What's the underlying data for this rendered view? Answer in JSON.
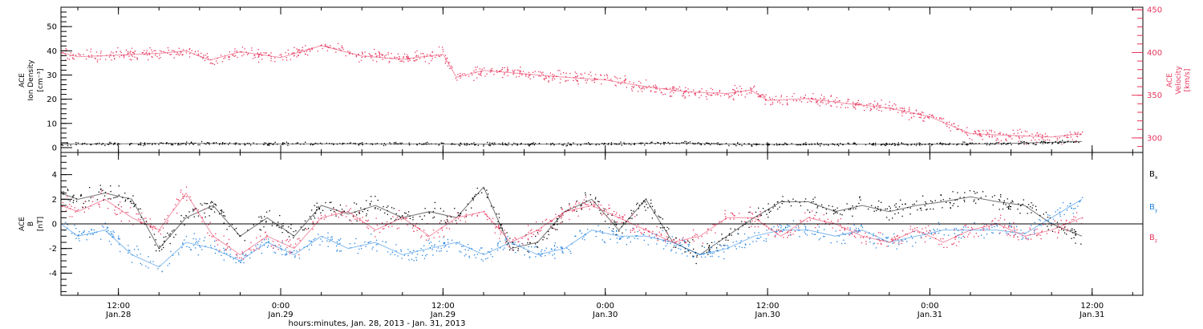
{
  "colors": {
    "density": "#000000",
    "velocity": "#e8365d",
    "bx": "#000000",
    "by": "#1f82e0",
    "bz": "#e8365d",
    "axis": "#000000"
  },
  "xaxis": {
    "ticks": [
      {
        "t": 9,
        "time": "12:00",
        "date": "Jan.28"
      },
      {
        "t": 21,
        "time": "0:00",
        "date": "Jan.29"
      },
      {
        "t": 33,
        "time": "12:00",
        "date": "Jan.29"
      },
      {
        "t": 45,
        "time": "0:00",
        "date": "Jan.30"
      },
      {
        "t": 57,
        "time": "12:00",
        "date": "Jan.30"
      },
      {
        "t": 69,
        "time": "0:00",
        "date": "Jan.31"
      },
      {
        "t": 81,
        "time": "12:00",
        "date": "Jan.31"
      }
    ],
    "label": "hours:minutes, Jan. 28, 2013 - Jan. 31, 2013"
  },
  "top_panel": {
    "left_label": [
      "ACE",
      "Ion Density",
      "[cm⁻³]"
    ],
    "right_label": [
      "ACE",
      "Velocity",
      "[km/s]"
    ],
    "left_ticks": [
      "0",
      "10",
      "20",
      "30",
      "40",
      "50"
    ],
    "right_ticks": [
      "300",
      "350",
      "400",
      "450"
    ]
  },
  "bottom_panel": {
    "left_label": [
      "ACE",
      "B",
      "[nT]"
    ],
    "left_ticks": [
      "-4",
      "-2",
      "0",
      "2",
      "4"
    ],
    "legend": [
      {
        "key": "bx",
        "text": "B",
        "sub": "x"
      },
      {
        "key": "by",
        "text": "B",
        "sub": "y"
      },
      {
        "key": "bz",
        "text": "B",
        "sub": "z"
      }
    ]
  },
  "chart_data": [
    {
      "type": "scatter",
      "title": "",
      "xlabel": "hours:minutes, Jan. 28, 2013 - Jan. 31, 2013",
      "xlim": [
        "2013-01-28T04:45",
        "2013-01-31T12:45"
      ],
      "ylabel_left": "ACE Ion Density [cm⁻³]",
      "ylim_left": [
        -2,
        58
      ],
      "ylabel_right": "ACE Velocity [km/s]",
      "ylim_right": [
        283,
        453
      ],
      "grid": false,
      "series": [
        {
          "key": "density",
          "axis": "left",
          "x": [
            "2013-01-28T04:45",
            "2013-01-28T08:00",
            "2013-01-28T14:00",
            "2013-01-28T20:00",
            "2013-01-29T02:00",
            "2013-01-29T08:00",
            "2013-01-29T14:00",
            "2013-01-29T20:00",
            "2013-01-30T02:00",
            "2013-01-30T08:00",
            "2013-01-30T14:00",
            "2013-01-30T20:00",
            "2013-01-31T02:00",
            "2013-01-31T08:15"
          ],
          "values": [
            1.5,
            1.5,
            1.8,
            1.5,
            1.6,
            1.5,
            1.4,
            1.5,
            1.8,
            1.3,
            1.4,
            1.4,
            1.6,
            2.5
          ]
        },
        {
          "key": "velocity",
          "axis": "right",
          "x": [
            "2013-01-28T04:45",
            "2013-01-28T06:00",
            "2013-01-28T09:00",
            "2013-01-28T12:00",
            "2013-01-28T14:00",
            "2013-01-28T15:45",
            "2013-01-28T18:00",
            "2013-01-28T21:00",
            "2013-01-29T00:00",
            "2013-01-29T03:00",
            "2013-01-29T06:00",
            "2013-01-29T09:00",
            "2013-01-29T10:00",
            "2013-01-29T12:00",
            "2013-01-29T15:00",
            "2013-01-29T18:00",
            "2013-01-29T21:00",
            "2013-01-30T00:00",
            "2013-01-30T03:00",
            "2013-01-30T06:00",
            "2013-01-30T07:45",
            "2013-01-30T09:00",
            "2013-01-30T12:00",
            "2013-01-30T15:00",
            "2013-01-30T18:00",
            "2013-01-30T21:00",
            "2013-01-31T00:00",
            "2013-01-31T03:00",
            "2013-01-31T06:00",
            "2013-01-31T08:15"
          ],
          "values": [
            400,
            395,
            397,
            399,
            402,
            391,
            401,
            394,
            408,
            396,
            392,
            398,
            371,
            379,
            375,
            371,
            368,
            360,
            354,
            352,
            356,
            344,
            346,
            340,
            335,
            325,
            305,
            303,
            301,
            305
          ]
        }
      ]
    },
    {
      "type": "scatter",
      "title": "",
      "xlabel": "hours:minutes, Jan. 28, 2013 - Jan. 31, 2013",
      "xlim": [
        "2013-01-28T04:45",
        "2013-01-31T12:45"
      ],
      "ylabel": "ACE B [nT]",
      "ylim": [
        -5.8,
        5.8
      ],
      "grid": false,
      "series": [
        {
          "key": "bx",
          "name": "Bx",
          "x": [
            "2013-01-28T04:45",
            "2013-01-28T06:00",
            "2013-01-28T08:00",
            "2013-01-28T10:00",
            "2013-01-28T12:00",
            "2013-01-28T14:00",
            "2013-01-28T16:00",
            "2013-01-28T18:00",
            "2013-01-28T20:00",
            "2013-01-28T22:00",
            "2013-01-29T00:00",
            "2013-01-29T02:00",
            "2013-01-29T04:00",
            "2013-01-29T06:00",
            "2013-01-29T08:00",
            "2013-01-29T10:00",
            "2013-01-29T12:00",
            "2013-01-29T14:00",
            "2013-01-29T16:00",
            "2013-01-29T18:00",
            "2013-01-29T20:00",
            "2013-01-29T22:00",
            "2013-01-30T00:00",
            "2013-01-30T02:00",
            "2013-01-30T04:00",
            "2013-01-30T06:00",
            "2013-01-30T08:00",
            "2013-01-30T10:00",
            "2013-01-30T12:00",
            "2013-01-30T14:00",
            "2013-01-30T16:00",
            "2013-01-30T18:00",
            "2013-01-30T20:00",
            "2013-01-30T22:00",
            "2013-01-31T00:00",
            "2013-01-31T02:00",
            "2013-01-31T04:00",
            "2013-01-31T06:00",
            "2013-01-31T08:15"
          ],
          "values": [
            2.5,
            2.0,
            2.5,
            2.0,
            -2.0,
            0.5,
            1.5,
            -1.0,
            0.5,
            -1.0,
            1.5,
            0.8,
            1.5,
            0.5,
            1.0,
            0.5,
            3.0,
            -2.0,
            -1.5,
            1.0,
            2.0,
            -0.5,
            2.0,
            -1.5,
            -2.5,
            -1.0,
            0.5,
            1.8,
            1.8,
            1.0,
            1.5,
            1.0,
            1.5,
            1.8,
            2.2,
            1.8,
            1.5,
            0.0,
            -1.0
          ]
        },
        {
          "key": "by",
          "name": "By",
          "x": [
            "2013-01-28T04:45",
            "2013-01-28T06:00",
            "2013-01-28T08:00",
            "2013-01-28T10:00",
            "2013-01-28T12:00",
            "2013-01-28T14:00",
            "2013-01-28T16:00",
            "2013-01-28T18:00",
            "2013-01-28T20:00",
            "2013-01-28T22:00",
            "2013-01-29T00:00",
            "2013-01-29T02:00",
            "2013-01-29T04:00",
            "2013-01-29T06:00",
            "2013-01-29T08:00",
            "2013-01-29T10:00",
            "2013-01-29T12:00",
            "2013-01-29T14:00",
            "2013-01-29T16:00",
            "2013-01-29T18:00",
            "2013-01-29T20:00",
            "2013-01-29T22:00",
            "2013-01-30T00:00",
            "2013-01-30T02:00",
            "2013-01-30T04:00",
            "2013-01-30T06:00",
            "2013-01-30T08:00",
            "2013-01-30T10:00",
            "2013-01-30T12:00",
            "2013-01-30T14:00",
            "2013-01-30T16:00",
            "2013-01-30T18:00",
            "2013-01-30T20:00",
            "2013-01-30T22:00",
            "2013-01-31T00:00",
            "2013-01-31T02:00",
            "2013-01-31T04:00",
            "2013-01-31T06:00",
            "2013-01-31T08:15"
          ],
          "values": [
            0.0,
            -1.0,
            -0.5,
            -2.5,
            -3.5,
            -1.5,
            -2.0,
            -3.0,
            -1.5,
            -2.5,
            -1.0,
            -2.0,
            -1.5,
            -2.5,
            -2.0,
            -1.5,
            -2.5,
            -1.5,
            -2.5,
            -2.0,
            -0.5,
            -1.0,
            -1.0,
            -1.5,
            -2.5,
            -2.0,
            -1.0,
            -0.5,
            -0.5,
            -1.0,
            -0.5,
            -1.5,
            -1.0,
            -0.5,
            -0.5,
            -0.5,
            -0.8,
            0.5,
            2.0
          ]
        },
        {
          "key": "bz",
          "name": "Bz",
          "x": [
            "2013-01-28T04:45",
            "2013-01-28T06:00",
            "2013-01-28T08:00",
            "2013-01-28T10:00",
            "2013-01-28T12:00",
            "2013-01-28T14:00",
            "2013-01-28T16:00",
            "2013-01-28T18:00",
            "2013-01-28T20:00",
            "2013-01-28T22:00",
            "2013-01-29T00:00",
            "2013-01-29T02:00",
            "2013-01-29T04:00",
            "2013-01-29T06:00",
            "2013-01-29T08:00",
            "2013-01-29T10:00",
            "2013-01-29T12:00",
            "2013-01-29T14:00",
            "2013-01-29T16:00",
            "2013-01-29T18:00",
            "2013-01-29T20:00",
            "2013-01-29T22:00",
            "2013-01-30T00:00",
            "2013-01-30T02:00",
            "2013-01-30T04:00",
            "2013-01-30T06:00",
            "2013-01-30T08:00",
            "2013-01-30T10:00",
            "2013-01-30T12:00",
            "2013-01-30T14:00",
            "2013-01-30T16:00",
            "2013-01-30T18:00",
            "2013-01-30T20:00",
            "2013-01-30T22:00",
            "2013-01-31T00:00",
            "2013-01-31T02:00",
            "2013-01-31T04:00",
            "2013-01-31T06:00",
            "2013-01-31T08:15"
          ],
          "values": [
            1.5,
            1.0,
            2.0,
            0.5,
            -0.5,
            2.5,
            -1.0,
            -2.5,
            -1.0,
            -2.0,
            0.5,
            1.0,
            -0.5,
            0.5,
            -1.0,
            0.5,
            1.0,
            -1.5,
            -0.5,
            1.0,
            1.5,
            0.5,
            -0.5,
            -1.5,
            -1.0,
            0.5,
            0.5,
            -1.0,
            0.5,
            0.0,
            -1.0,
            -1.5,
            -0.5,
            -1.5,
            -0.5,
            0.0,
            -1.0,
            -0.5,
            0.5
          ]
        }
      ]
    }
  ]
}
